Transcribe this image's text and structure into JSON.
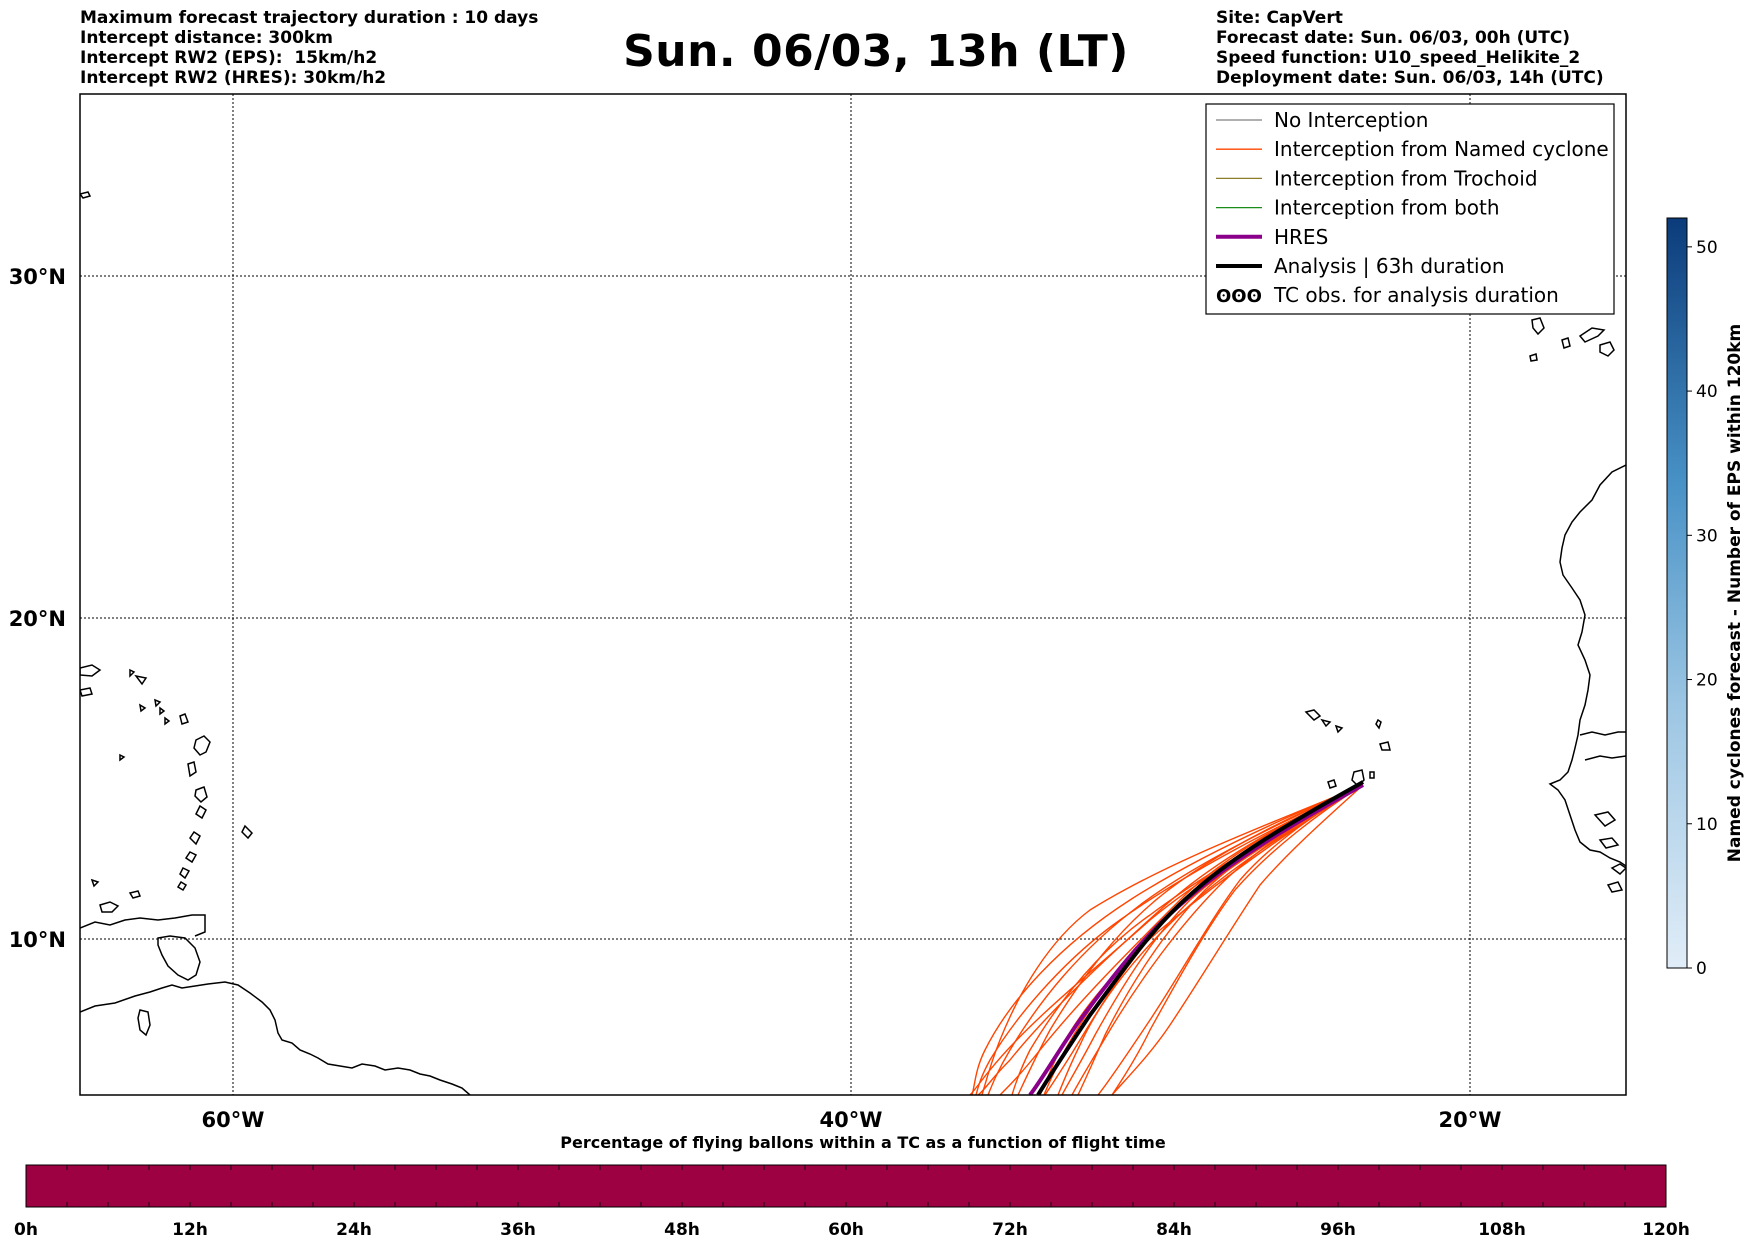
{
  "header": {
    "title": "Sun. 06/03, 13h (LT)",
    "left_lines": [
      "Maximum forecast trajectory duration : 10 days",
      "Intercept distance: 300km",
      "Intercept RW2 (EPS):  15km/h2",
      "Intercept RW2 (HRES): 30km/h2"
    ],
    "right_lines": [
      "Site: CapVert",
      "Forecast date: Sun. 06/03, 00h (UTC)",
      "Speed function: U10_speed_Helikite_2",
      "Deployment date: Sun. 06/03, 14h (UTC)"
    ]
  },
  "map": {
    "lat_ticks": [
      "30°N",
      "20°N",
      "10°N"
    ],
    "lon_ticks": [
      "60°W",
      "40°W",
      "20°W"
    ],
    "legend": [
      {
        "label": "No Interception",
        "color": "#808080",
        "style": "thin"
      },
      {
        "label": "Interception from Named cyclone",
        "color": "#ff4500",
        "style": "thin"
      },
      {
        "label": "Interception from Trochoid",
        "color": "#8b7d2a",
        "style": "thin"
      },
      {
        "label": "Interception from both",
        "color": "#1a8c1a",
        "style": "thin"
      },
      {
        "label": "HRES",
        "color": "#8b008b",
        "style": "thick"
      },
      {
        "label": "Analysis | 63h duration",
        "color": "#000000",
        "style": "thick"
      },
      {
        "label": "TC obs. for analysis duration",
        "color": "#000000",
        "style": "symbol",
        "symbol": "ʘʘʘ"
      }
    ]
  },
  "colorbar": {
    "label": "Named cyclones forecast - Number of EPS within 120km",
    "ticks": [
      "0",
      "10",
      "20",
      "30",
      "40",
      "50"
    ],
    "range": [
      0,
      52
    ],
    "color_low": "#e1edf8",
    "color_high": "#0b3b7a"
  },
  "time_bar": {
    "title": "Percentage of flying ballons within a TC as a function of flight time",
    "ticks": [
      "0h",
      "12h",
      "24h",
      "36h",
      "48h",
      "60h",
      "72h",
      "84h",
      "96h",
      "108h",
      "120h"
    ],
    "fill_color": "#9e0142"
  }
}
